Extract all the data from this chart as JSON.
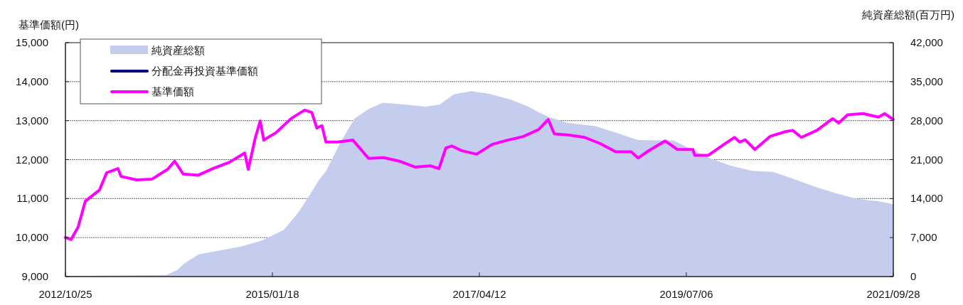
{
  "chart_data": {
    "type": "line",
    "ylabel": "基準価額(円)",
    "y2label": "純資産総額(百万円)",
    "xlim": [
      "2012-10-25",
      "2021-09-28"
    ],
    "xticks": [
      {
        "value": "2012-10-25",
        "label": "2012/10/25"
      },
      {
        "value": "2015-01-18",
        "label": "2015/01/18"
      },
      {
        "value": "2017-04-12",
        "label": "2017/04/12"
      },
      {
        "value": "2019-07-06",
        "label": "2019/07/06"
      },
      {
        "value": "2021-09-28",
        "label": "2021/09/28"
      }
    ],
    "ylim": [
      9000,
      15000
    ],
    "yticks": [
      {
        "value": 9000,
        "label": "9,000"
      },
      {
        "value": 10000,
        "label": "10,000"
      },
      {
        "value": 11000,
        "label": "11,000"
      },
      {
        "value": 12000,
        "label": "12,000"
      },
      {
        "value": 13000,
        "label": "13,000"
      },
      {
        "value": 14000,
        "label": "14,000"
      },
      {
        "value": 15000,
        "label": "15,000"
      }
    ],
    "y2lim": [
      0,
      42000
    ],
    "y2ticks": [
      0,
      {
        "value": 7000,
        "label": "7,000"
      },
      {
        "value": 14000,
        "label": "14,000"
      },
      {
        "value": 21000,
        "label": "21,000"
      },
      {
        "value": 28000,
        "label": "28,000"
      },
      {
        "value": 35000,
        "label": "35,000"
      },
      {
        "value": 42000,
        "label": "42,000"
      }
    ],
    "grid": "y",
    "legend": "top left",
    "series": [
      {
        "name": "純資産総額",
        "type": "area",
        "axis": "y2",
        "color": "#c5cdef",
        "x": [
          "2012-10-25",
          "2013-11-28",
          "2014-01-09",
          "2014-02-06",
          "2014-04-03",
          "2014-06-25",
          "2014-09-17",
          "2014-12-10",
          "2015-03-04",
          "2015-04-28",
          "2015-06-09",
          "2015-07-21",
          "2015-08-18",
          "2015-10-13",
          "2015-12-08",
          "2016-02-02",
          "2016-03-28",
          "2016-06-20",
          "2016-09-12",
          "2016-11-07",
          "2017-01-01",
          "2017-03-12",
          "2017-05-21",
          "2017-08-13",
          "2017-10-22",
          "2017-12-02",
          "2018-01-13",
          "2018-03-24",
          "2018-07-14",
          "2018-10-05",
          "2018-12-28",
          "2019-05-18",
          "2019-08-09",
          "2019-10-04",
          "2019-12-27",
          "2020-03-20",
          "2020-06-11",
          "2020-09-03",
          "2020-11-26",
          "2021-02-18",
          "2021-05-12",
          "2021-08-04",
          "2021-09-28"
        ],
        "values": [
          100,
          300,
          1200,
          2400,
          4000,
          4700,
          5400,
          6500,
          8400,
          11400,
          14300,
          17400,
          19000,
          24100,
          28400,
          30100,
          31200,
          30900,
          30500,
          30900,
          32700,
          33300,
          32800,
          31800,
          30500,
          29500,
          28600,
          27600,
          27000,
          25800,
          24500,
          24400,
          22500,
          21300,
          19900,
          19000,
          18800,
          17500,
          16100,
          14900,
          13900,
          13500,
          13000
        ]
      },
      {
        "name": "分配金再投資基準価額",
        "color": "#000080"
      },
      {
        "name": "基準価額",
        "color": "#ff00ff",
        "x": [
          "2012-10-25",
          "2012-11-16",
          "2012-12-14",
          "2013-01-11",
          "2013-02-01",
          "2013-03-08",
          "2013-04-05",
          "2013-05-20",
          "2013-06-01",
          "2013-08-01",
          "2013-10-01",
          "2013-12-01",
          "2013-12-29",
          "2014-02-01",
          "2014-04-01",
          "2014-06-01",
          "2014-08-01",
          "2014-10-01",
          "2014-10-15",
          "2014-11-12",
          "2014-12-01",
          "2014-12-15",
          "2015-02-01",
          "2015-04-01",
          "2015-05-25",
          "2015-06-22",
          "2015-07-12",
          "2015-08-01",
          "2015-08-17",
          "2015-10-01",
          "2015-12-01",
          "2016-02-01",
          "2016-04-01",
          "2016-06-01",
          "2016-08-01",
          "2016-10-01",
          "2016-11-04",
          "2016-12-01",
          "2016-12-24",
          "2017-02-01",
          "2017-04-01",
          "2017-06-01",
          "2017-08-01",
          "2017-10-01",
          "2017-12-01",
          "2018-01-08",
          "2018-02-01",
          "2018-04-01",
          "2018-06-01",
          "2018-08-01",
          "2018-10-01",
          "2018-12-01",
          "2018-12-28",
          "2019-02-01",
          "2019-04-13",
          "2019-06-01",
          "2019-08-01",
          "2019-08-08",
          "2019-10-01",
          "2019-12-01",
          "2020-01-12",
          "2020-02-01",
          "2020-02-23",
          "2020-04-01",
          "2020-06-01",
          "2020-08-01",
          "2020-08-28",
          "2020-10-01",
          "2020-12-01",
          "2021-02-01",
          "2021-02-25",
          "2021-04-01",
          "2021-06-01",
          "2021-08-01",
          "2021-08-25",
          "2021-09-28"
        ],
        "values": [
          10000,
          9950,
          10270,
          10930,
          11040,
          11220,
          11660,
          11770,
          11570,
          11480,
          11500,
          11750,
          11960,
          11630,
          11600,
          11780,
          11930,
          12170,
          11750,
          12570,
          12990,
          12500,
          12690,
          13050,
          13270,
          13210,
          12810,
          12870,
          12450,
          12450,
          12500,
          12030,
          12050,
          11960,
          11810,
          11840,
          11770,
          12300,
          12350,
          12230,
          12140,
          12390,
          12500,
          12590,
          12770,
          13030,
          12660,
          12630,
          12570,
          12410,
          12200,
          12200,
          12040,
          12200,
          12480,
          12260,
          12260,
          12110,
          12110,
          12390,
          12570,
          12450,
          12510,
          12260,
          12600,
          12720,
          12750,
          12570,
          12750,
          13050,
          12940,
          13150,
          13180,
          13090,
          13180,
          13030
        ]
      }
    ]
  }
}
